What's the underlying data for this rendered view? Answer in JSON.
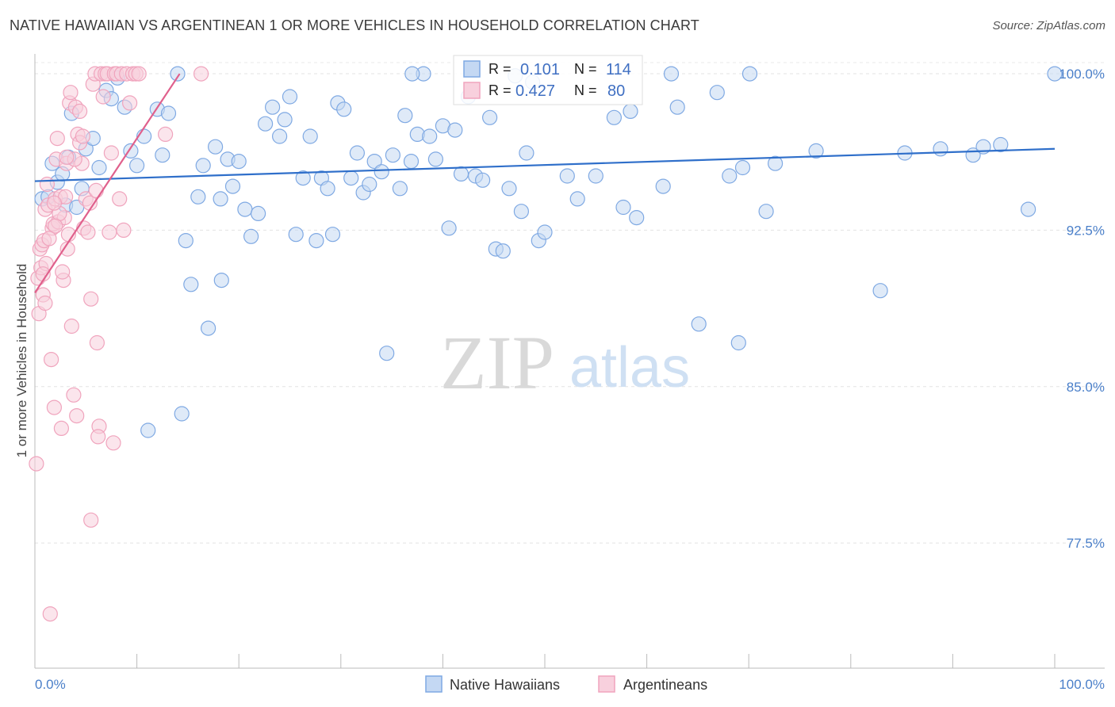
{
  "chart_data": {
    "type": "scatter",
    "title": "NATIVE HAWAIIAN VS ARGENTINEAN 1 OR MORE VEHICLES IN HOUSEHOLD CORRELATION CHART",
    "source": "Source: ZipAtlas.com",
    "ylabel": "1 or more Vehicles in Household",
    "xlabel": "",
    "xlim": [
      0,
      100
    ],
    "ylim": [
      71.5,
      100.8
    ],
    "x_tick_labels": [
      "0.0%",
      "100.0%"
    ],
    "y_ticks": [
      {
        "value": 100.0,
        "label": "100.0%"
      },
      {
        "value": 92.5,
        "label": "92.5%"
      },
      {
        "value": 85.0,
        "label": "85.0%"
      },
      {
        "value": 77.5,
        "label": "77.5%"
      }
    ],
    "grid": true,
    "watermark": {
      "zip": "ZIP",
      "atlas": "atlas"
    },
    "series": [
      {
        "name": "Native Hawaiians",
        "color": "#7fa9e3",
        "line_color": "#2f6fca",
        "R_label": "R =",
        "R": "0.101",
        "N_label": "N =",
        "N": "114",
        "trend": {
          "x0": 0,
          "y0": 94.85,
          "x1": 100,
          "y1": 96.4
        },
        "points": [
          [
            0.7,
            94.0
          ],
          [
            1.3,
            94.1
          ],
          [
            1.7,
            95.7
          ],
          [
            2.2,
            94.8
          ],
          [
            2.7,
            95.2
          ],
          [
            3.0,
            93.7
          ],
          [
            3.3,
            96.0
          ],
          [
            3.6,
            98.1
          ],
          [
            4.1,
            93.6
          ],
          [
            4.6,
            94.5
          ],
          [
            5.0,
            96.4
          ],
          [
            5.7,
            96.9
          ],
          [
            6.3,
            95.5
          ],
          [
            7.0,
            99.2
          ],
          [
            7.5,
            98.8
          ],
          [
            8.1,
            99.8
          ],
          [
            8.8,
            98.4
          ],
          [
            9.4,
            96.3
          ],
          [
            10.0,
            95.6
          ],
          [
            10.7,
            97.0
          ],
          [
            11.1,
            82.9
          ],
          [
            12.0,
            98.3
          ],
          [
            12.5,
            96.1
          ],
          [
            13.1,
            98.1
          ],
          [
            14.0,
            100.0
          ],
          [
            14.4,
            83.7
          ],
          [
            14.8,
            92.0
          ],
          [
            15.3,
            89.9
          ],
          [
            16.0,
            94.1
          ],
          [
            16.5,
            95.6
          ],
          [
            17.0,
            87.8
          ],
          [
            17.7,
            96.5
          ],
          [
            18.2,
            94.0
          ],
          [
            18.9,
            95.9
          ],
          [
            19.4,
            94.6
          ],
          [
            20.0,
            95.8
          ],
          [
            20.6,
            93.5
          ],
          [
            21.2,
            92.2
          ],
          [
            21.9,
            93.3
          ],
          [
            22.6,
            97.6
          ],
          [
            23.3,
            98.4
          ],
          [
            24.0,
            97.0
          ],
          [
            24.5,
            97.8
          ],
          [
            25.0,
            98.9
          ],
          [
            25.6,
            92.3
          ],
          [
            26.3,
            95.0
          ],
          [
            27.0,
            97.0
          ],
          [
            27.6,
            92.0
          ],
          [
            28.1,
            95.0
          ],
          [
            28.7,
            94.5
          ],
          [
            29.2,
            92.3
          ],
          [
            29.7,
            98.6
          ],
          [
            30.3,
            98.3
          ],
          [
            31.0,
            95.0
          ],
          [
            31.6,
            96.2
          ],
          [
            32.2,
            94.3
          ],
          [
            32.8,
            94.7
          ],
          [
            33.3,
            95.8
          ],
          [
            34.0,
            95.3
          ],
          [
            34.5,
            86.6
          ],
          [
            35.1,
            96.1
          ],
          [
            35.8,
            94.5
          ],
          [
            36.3,
            98.0
          ],
          [
            36.9,
            95.8
          ],
          [
            37.5,
            97.1
          ],
          [
            38.1,
            100.0
          ],
          [
            38.7,
            97.0
          ],
          [
            39.3,
            95.9
          ],
          [
            40.0,
            97.5
          ],
          [
            40.6,
            92.6
          ],
          [
            41.2,
            97.3
          ],
          [
            41.8,
            95.2
          ],
          [
            42.5,
            98.9
          ],
          [
            43.2,
            95.1
          ],
          [
            43.9,
            94.9
          ],
          [
            44.6,
            97.9
          ],
          [
            45.2,
            91.6
          ],
          [
            45.9,
            91.5
          ],
          [
            46.5,
            94.5
          ],
          [
            47.1,
            99.9
          ],
          [
            47.7,
            93.4
          ],
          [
            48.2,
            96.2
          ],
          [
            48.8,
            99.6
          ],
          [
            49.4,
            92.0
          ],
          [
            50.0,
            92.4
          ],
          [
            52.2,
            95.1
          ],
          [
            53.2,
            94.0
          ],
          [
            55.0,
            95.1
          ],
          [
            56.8,
            97.9
          ],
          [
            57.7,
            93.6
          ],
          [
            58.4,
            98.2
          ],
          [
            59.0,
            93.1
          ],
          [
            61.6,
            94.6
          ],
          [
            62.4,
            100.0
          ],
          [
            63.0,
            98.4
          ],
          [
            65.1,
            88.0
          ],
          [
            66.9,
            99.1
          ],
          [
            68.1,
            95.1
          ],
          [
            69.0,
            87.1
          ],
          [
            69.4,
            95.5
          ],
          [
            70.1,
            100.0
          ],
          [
            71.7,
            93.4
          ],
          [
            72.6,
            95.7
          ],
          [
            76.6,
            96.3
          ],
          [
            82.9,
            89.6
          ],
          [
            85.3,
            96.2
          ],
          [
            88.8,
            96.4
          ],
          [
            92.0,
            96.1
          ],
          [
            94.7,
            96.6
          ],
          [
            97.4,
            93.5
          ],
          [
            100.0,
            100.0
          ],
          [
            93.0,
            96.5
          ],
          [
            37.0,
            100.0
          ],
          [
            18.3,
            90.1
          ]
        ]
      },
      {
        "name": "Argentineans",
        "color": "#f0a4bd",
        "line_color": "#e0608c",
        "R_label": "R =",
        "R": "0.427",
        "N_label": "N =",
        "N": "80",
        "trend": {
          "x0": 0,
          "y0": 89.5,
          "x1": 14.2,
          "y1": 100.0
        },
        "points": [
          [
            0.15,
            81.3
          ],
          [
            0.3,
            90.2
          ],
          [
            0.4,
            88.5
          ],
          [
            0.5,
            91.6
          ],
          [
            0.6,
            90.7
          ],
          [
            0.7,
            91.8
          ],
          [
            0.8,
            89.4
          ],
          [
            0.9,
            92.0
          ],
          [
            1.0,
            93.5
          ],
          [
            1.1,
            90.9
          ],
          [
            1.2,
            94.7
          ],
          [
            1.3,
            93.7
          ],
          [
            1.5,
            74.1
          ],
          [
            1.6,
            86.3
          ],
          [
            1.7,
            92.6
          ],
          [
            1.8,
            92.8
          ],
          [
            1.9,
            84.0
          ],
          [
            2.0,
            94.0
          ],
          [
            2.1,
            95.9
          ],
          [
            2.2,
            96.9
          ],
          [
            2.3,
            92.9
          ],
          [
            2.5,
            94.1
          ],
          [
            2.6,
            83.0
          ],
          [
            2.8,
            90.1
          ],
          [
            2.9,
            93.1
          ],
          [
            3.0,
            94.1
          ],
          [
            3.1,
            95.7
          ],
          [
            3.2,
            91.6
          ],
          [
            3.4,
            98.6
          ],
          [
            3.5,
            99.1
          ],
          [
            3.6,
            87.9
          ],
          [
            3.8,
            84.6
          ],
          [
            4.0,
            98.4
          ],
          [
            4.2,
            97.1
          ],
          [
            4.4,
            96.7
          ],
          [
            4.6,
            95.7
          ],
          [
            4.8,
            92.6
          ],
          [
            5.0,
            94.0
          ],
          [
            5.2,
            92.4
          ],
          [
            5.4,
            93.8
          ],
          [
            5.5,
            89.2
          ],
          [
            5.7,
            99.5
          ],
          [
            5.9,
            100.0
          ],
          [
            6.1,
            87.1
          ],
          [
            6.3,
            83.1
          ],
          [
            6.5,
            100.0
          ],
          [
            6.7,
            98.9
          ],
          [
            6.9,
            100.0
          ],
          [
            7.1,
            100.0
          ],
          [
            7.3,
            92.4
          ],
          [
            7.5,
            96.2
          ],
          [
            7.8,
            100.0
          ],
          [
            8.0,
            100.0
          ],
          [
            8.3,
            94.0
          ],
          [
            8.5,
            100.0
          ],
          [
            8.7,
            92.5
          ],
          [
            9.0,
            100.0
          ],
          [
            9.3,
            98.6
          ],
          [
            9.6,
            100.0
          ],
          [
            9.9,
            100.0
          ],
          [
            12.8,
            97.1
          ],
          [
            4.1,
            83.6
          ],
          [
            5.5,
            78.6
          ],
          [
            1.0,
            89.0
          ],
          [
            2.4,
            93.3
          ],
          [
            3.3,
            92.3
          ],
          [
            6.0,
            94.4
          ],
          [
            0.8,
            90.4
          ],
          [
            2.0,
            92.7
          ],
          [
            1.4,
            92.1
          ],
          [
            3.9,
            95.9
          ],
          [
            4.7,
            97.0
          ],
          [
            3.1,
            96.0
          ],
          [
            10.2,
            100.0
          ],
          [
            6.2,
            82.6
          ],
          [
            7.7,
            82.3
          ],
          [
            4.4,
            98.2
          ],
          [
            2.7,
            90.5
          ],
          [
            1.9,
            93.8
          ],
          [
            16.3,
            100.0
          ]
        ]
      }
    ]
  }
}
